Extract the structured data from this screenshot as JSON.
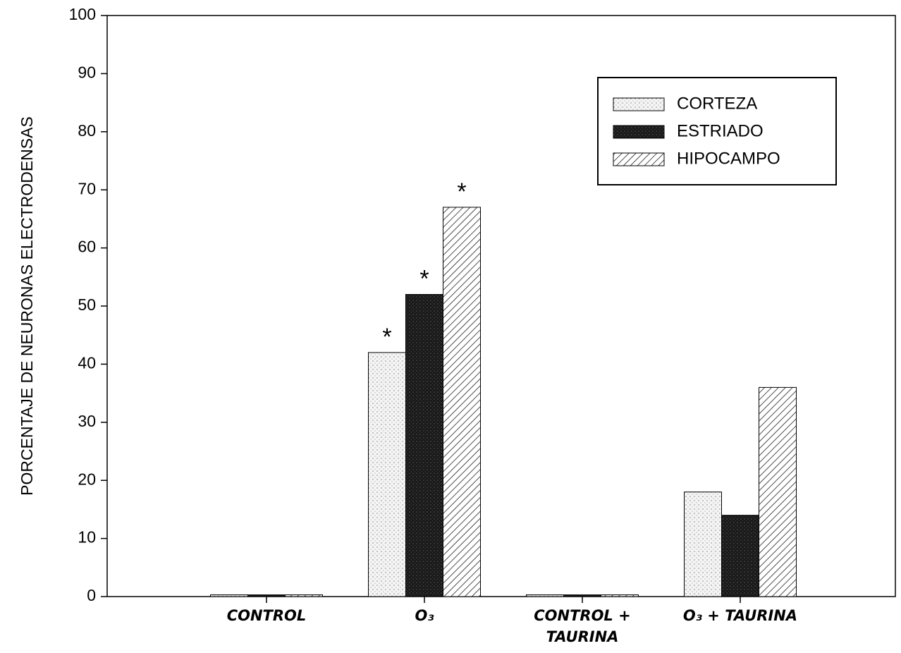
{
  "chart_data": {
    "type": "bar",
    "ylabel": "PORCENTAJE DE NEURONAS ELECTRODENSAS",
    "categories": [
      "CONTROL",
      "O₃",
      "CONTROL + TAURINA",
      "O₃ + TAURINA"
    ],
    "series": [
      {
        "name": "CORTEZA",
        "color": "#f2f2f2",
        "pattern": "stipple",
        "values": [
          0.3,
          42,
          0.3,
          18
        ],
        "markers": [
          null,
          "*",
          null,
          null
        ]
      },
      {
        "name": "ESTRIADO",
        "color": "#1a1a1a",
        "pattern": "dark-stipple",
        "values": [
          0.3,
          52,
          0.3,
          14
        ],
        "markers": [
          null,
          "*",
          null,
          null
        ]
      },
      {
        "name": "HIPOCAMPO",
        "color": "#ffffff",
        "pattern": "hatch",
        "values": [
          0.3,
          67,
          0.3,
          36
        ],
        "markers": [
          null,
          "*",
          null,
          null
        ]
      }
    ],
    "ylim": [
      0,
      100
    ],
    "yticks": [
      0,
      10,
      20,
      30,
      40,
      50,
      60,
      70,
      80,
      90,
      100
    ],
    "grid": false,
    "legend": "upper right"
  }
}
